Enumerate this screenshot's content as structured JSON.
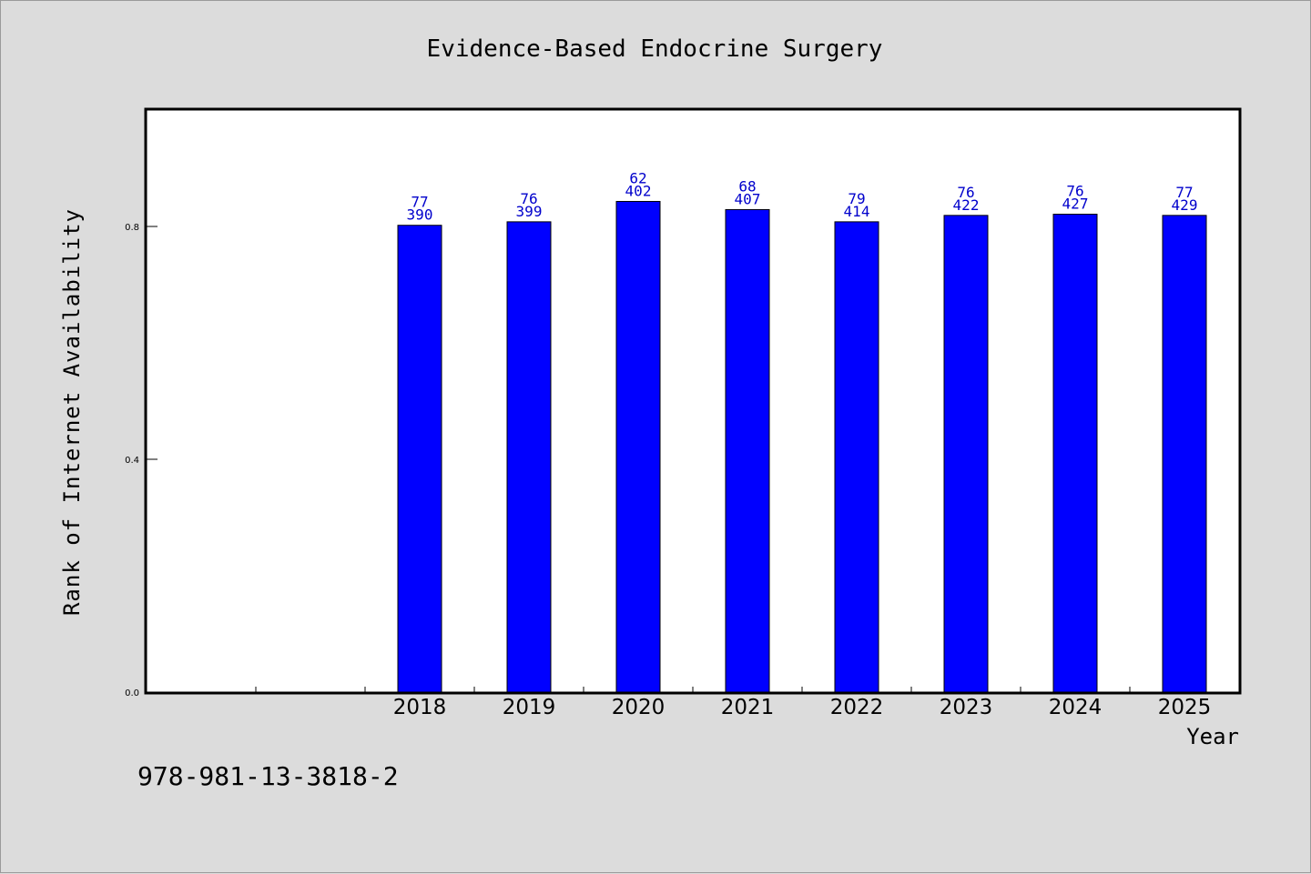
{
  "chart_data": {
    "type": "bar",
    "title": "Evidence-Based Endocrine Surgery",
    "xlabel": "Year",
    "ylabel": "Rank of Internet Availability",
    "footer": "978-981-13-3818-2",
    "categories": [
      "2018",
      "2019",
      "2020",
      "2021",
      "2022",
      "2023",
      "2024",
      "2025"
    ],
    "values": [
      0.802,
      0.808,
      0.843,
      0.829,
      0.808,
      0.819,
      0.821,
      0.819
    ],
    "labels_top": [
      "77",
      "76",
      "62",
      "68",
      "79",
      "76",
      "76",
      "77"
    ],
    "labels_bottom": [
      "390",
      "399",
      "402",
      "407",
      "414",
      "422",
      "427",
      "429"
    ],
    "yticks": [
      "0.0",
      "0.4",
      "0.8"
    ],
    "ytick_values": [
      0.0,
      0.4,
      0.8
    ],
    "ylim": [
      0.0,
      1.0
    ],
    "x_slots": 10,
    "first_category_slot": 2,
    "grid": false,
    "colors": {
      "bar": "#0000ff",
      "label": "#0000cc",
      "background": "#dcdcdc",
      "plot": "#ffffff"
    }
  }
}
